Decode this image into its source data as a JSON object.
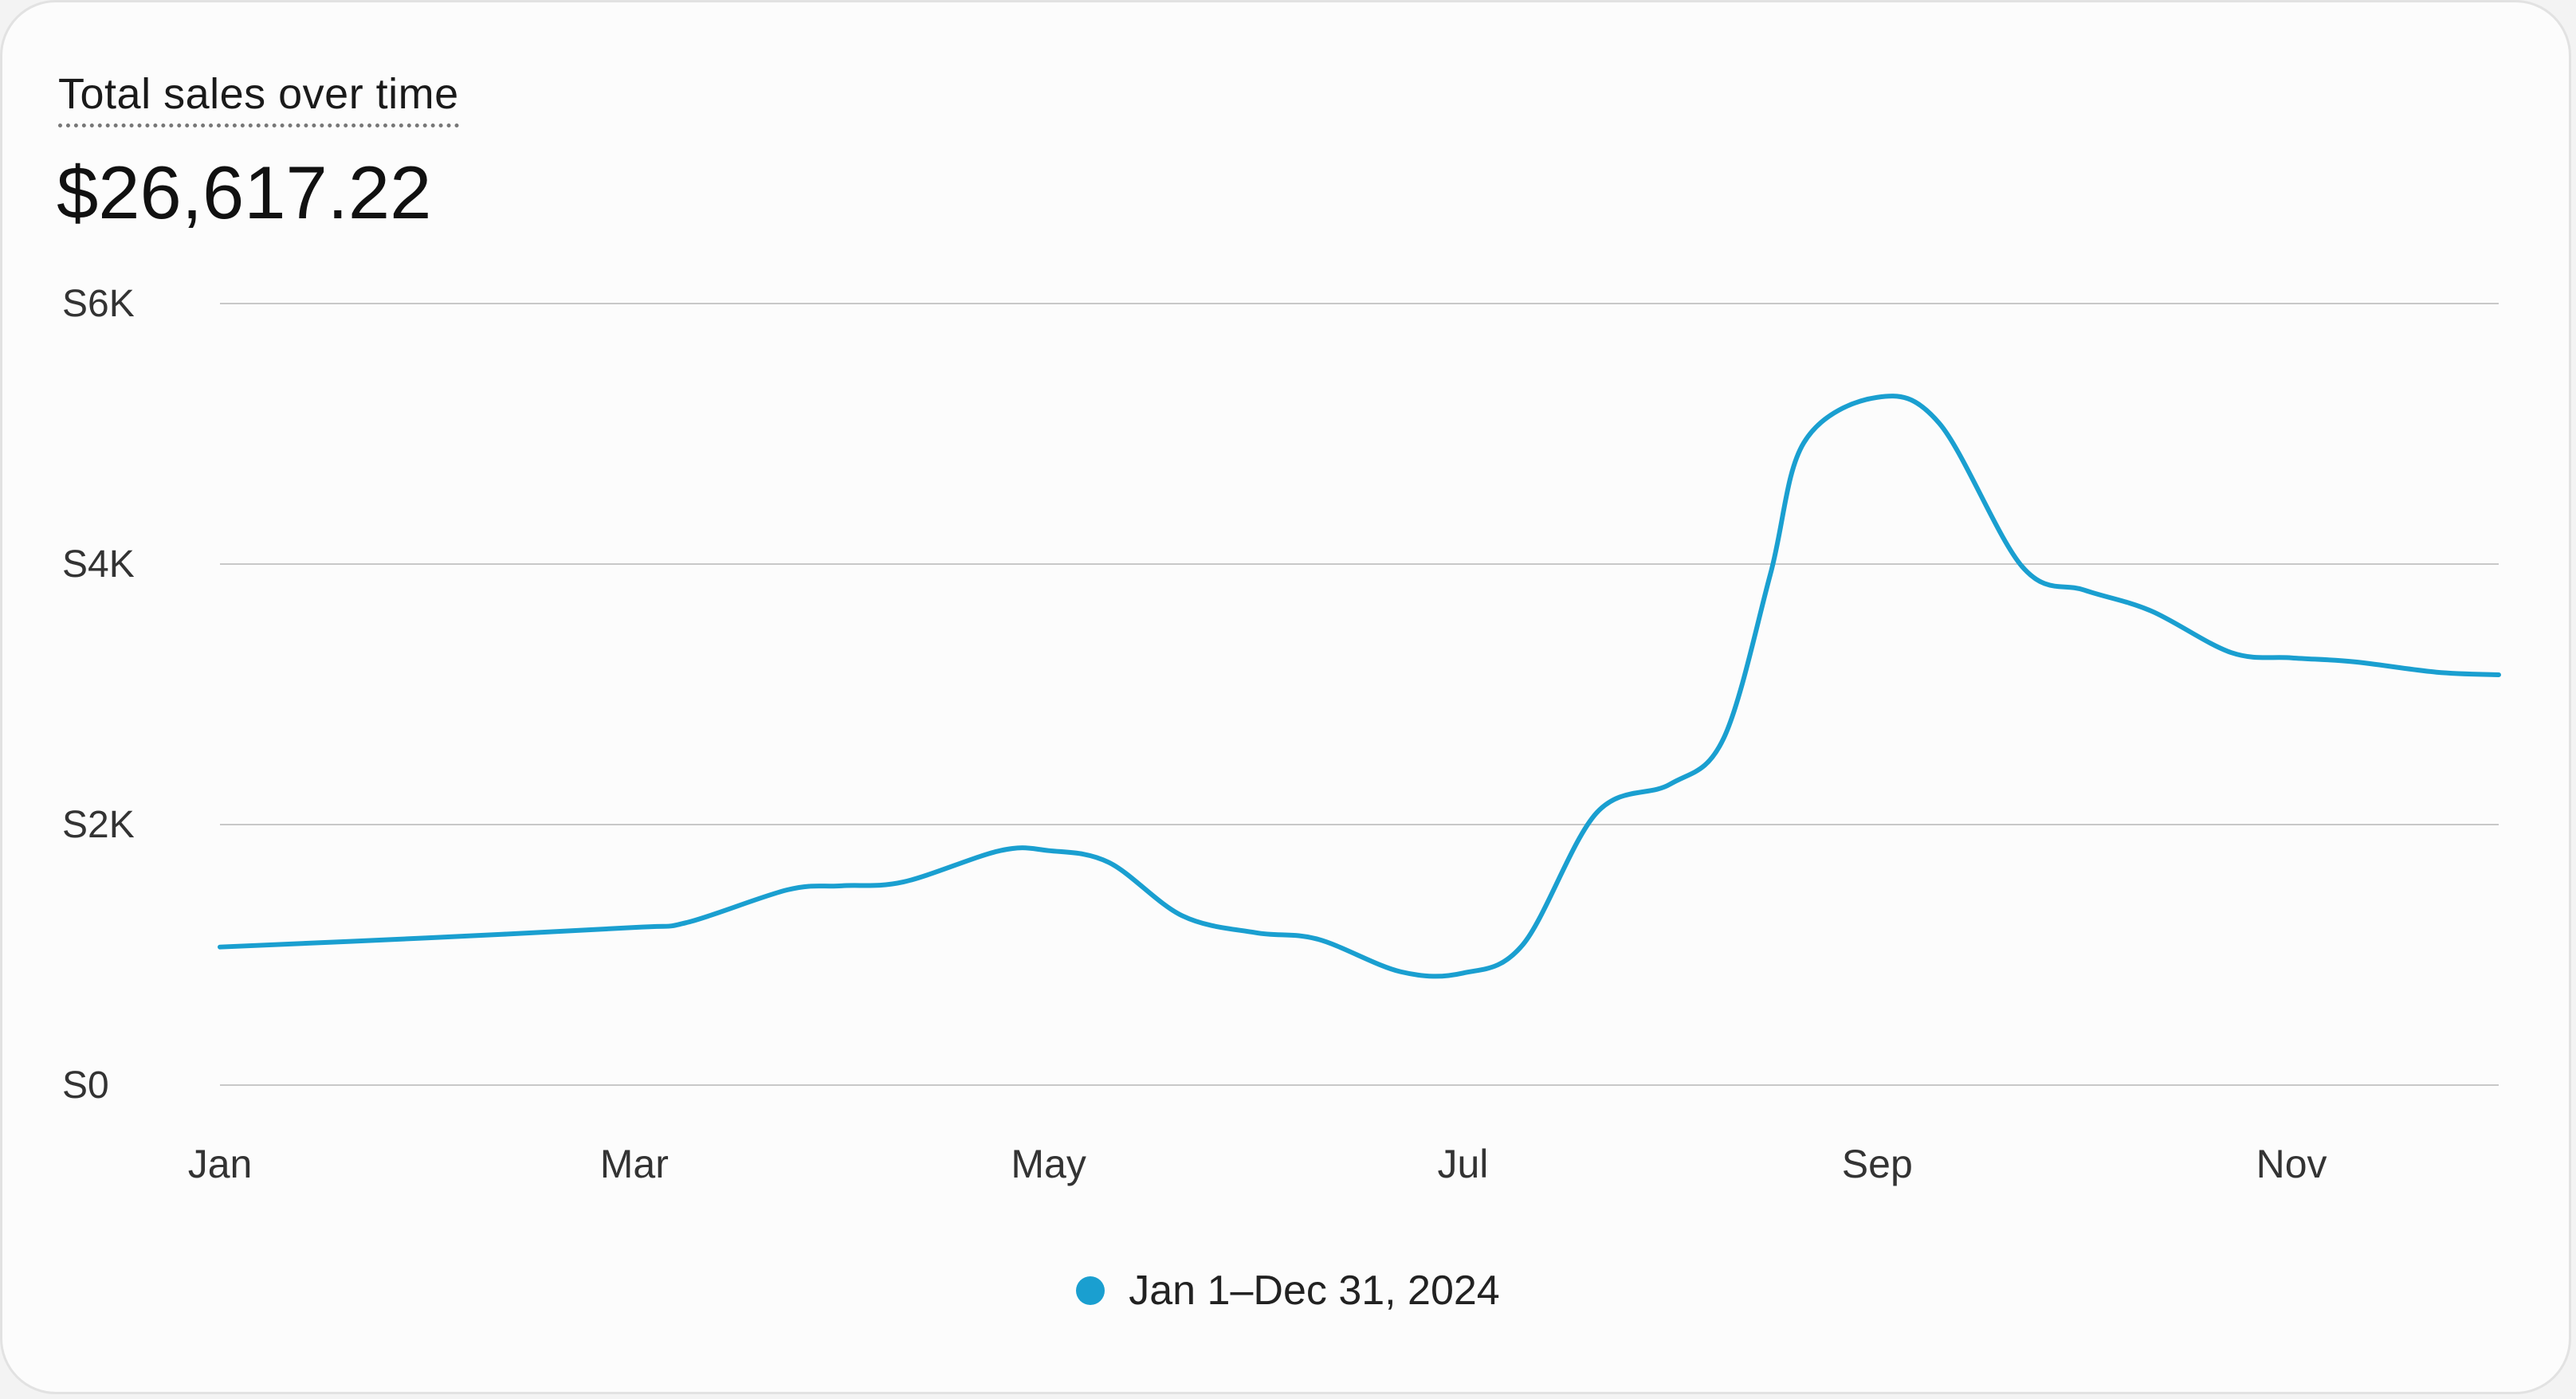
{
  "card": {
    "title": "Total sales over time",
    "total": "$26,617.22"
  },
  "chart_data": {
    "type": "line",
    "title": "Total sales over time",
    "ylim": [
      0,
      6000
    ],
    "yticks": [
      0,
      2000,
      4000,
      6000
    ],
    "ytick_labels": [
      "S0",
      "S2K",
      "S4K",
      "S6K"
    ],
    "xtick_labels": [
      "Jan",
      "Mar",
      "May",
      "Jul",
      "Sep",
      "Nov"
    ],
    "xticks": [
      "2024-01-01",
      "2024-03-01",
      "2024-05-01",
      "2024-07-01",
      "2024-09-01",
      "2024-11-01"
    ],
    "xlim": [
      "2024-01-01",
      "2024-12-01"
    ],
    "grid": true,
    "legend": "bottom-center",
    "color": "#1a9fd0",
    "series": [
      {
        "name": "Jan 1–Dec 31, 2024",
        "x": [
          "2024-01-01",
          "2024-02-01",
          "2024-03-01",
          "2024-03-09",
          "2024-03-24",
          "2024-04-01",
          "2024-04-10",
          "2024-04-24",
          "2024-05-01",
          "2024-05-10",
          "2024-05-21",
          "2024-06-01",
          "2024-06-10",
          "2024-06-22",
          "2024-07-01",
          "2024-07-10",
          "2024-07-21",
          "2024-08-01",
          "2024-08-09",
          "2024-08-16",
          "2024-08-21",
          "2024-09-01",
          "2024-09-10",
          "2024-09-22",
          "2024-10-01",
          "2024-10-11",
          "2024-10-23",
          "2024-11-01",
          "2024-11-10",
          "2024-11-22",
          "2024-12-01"
        ],
        "values": [
          1060,
          1130,
          1210,
          1250,
          1500,
          1530,
          1560,
          1800,
          1800,
          1710,
          1300,
          1170,
          1120,
          870,
          860,
          1080,
          2090,
          2310,
          2660,
          3920,
          4930,
          5280,
          5080,
          3980,
          3800,
          3640,
          3320,
          3280,
          3250,
          3170,
          3150
        ]
      }
    ]
  }
}
